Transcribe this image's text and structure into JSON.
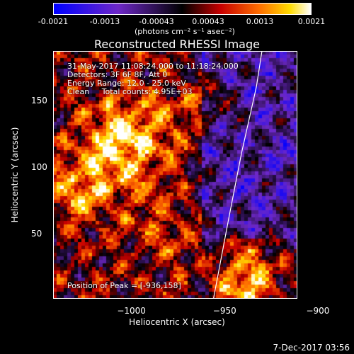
{
  "chart_data": {
    "type": "heatmap",
    "title": "Reconstructed RHESSI Image",
    "xlabel": "Heliocentric X (arcsec)",
    "ylabel": "Heliocentric Y (arcsec)",
    "xlim": [
      -1042,
      -911
    ],
    "ylim": [
      1,
      187
    ],
    "xticks": [
      -1000,
      -950,
      -900
    ],
    "yticks": [
      50,
      100,
      150
    ],
    "colorbar": {
      "ticks": [
        "-0.0021",
        "-0.0013",
        "-0.00043",
        "0.00043",
        "0.0013",
        "0.0021"
      ],
      "range": [
        -0.0021,
        0.0021
      ],
      "units": "(photons cm⁻² s⁻¹ asec⁻²)"
    },
    "annotations": {
      "time": "31-May-2017 11:08:24.000 to 11:18:24.000",
      "detectors": "Detectors: 3F 6F 8F, Att 0",
      "energy": "Energy Range: 12.0 - 25.0 keV",
      "clean": "Clean     Total counts: 4.95E+03",
      "peak": "Position of Peak = [-936,158]"
    },
    "limb_curve": [
      [
        -956,
        1
      ],
      [
        -948,
        60
      ],
      [
        -941,
        110
      ],
      [
        -933,
        160
      ],
      [
        -930,
        187
      ]
    ]
  },
  "footer": "7-Dec-2017 03:56"
}
